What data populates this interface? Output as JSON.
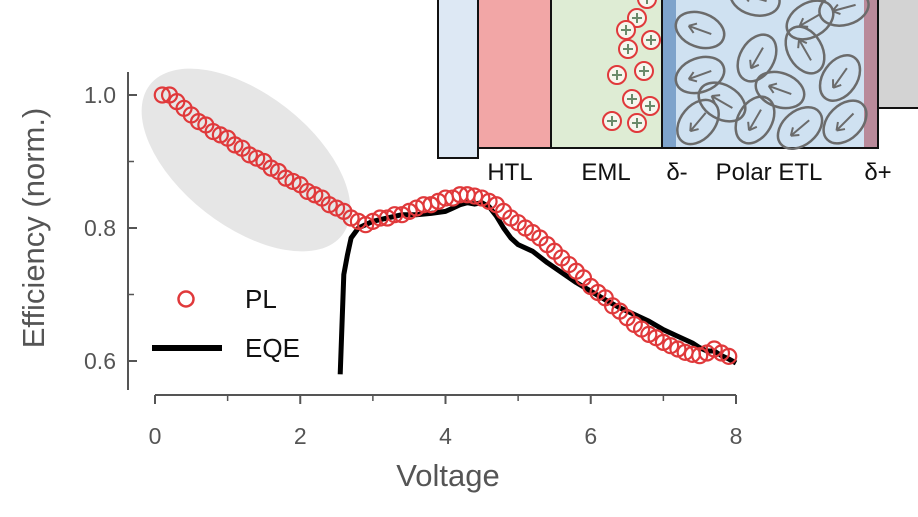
{
  "chart_data": {
    "type": "scatter",
    "title": "",
    "xlabel": "Voltage",
    "ylabel": "Efficiency (norm.)",
    "xlim": [
      0,
      8
    ],
    "ylim": [
      0.58,
      1.02
    ],
    "xticks": [
      "0",
      "2",
      "4",
      "6",
      "8"
    ],
    "yticks": [
      "0.6",
      "0.8",
      "1.0"
    ],
    "grid": false,
    "legend_position": "left",
    "highlight": {
      "type": "ellipse",
      "x_range": [
        -0.3,
        2.8
      ],
      "y_range": [
        0.8,
        1.05
      ],
      "color": "#e6e6e6"
    },
    "series": [
      {
        "name": "PL",
        "style": "open-circle",
        "color": "#e0393b",
        "x": [
          0.1,
          0.2,
          0.3,
          0.4,
          0.5,
          0.6,
          0.7,
          0.8,
          0.9,
          1.0,
          1.1,
          1.2,
          1.3,
          1.4,
          1.5,
          1.6,
          1.7,
          1.8,
          1.9,
          2.0,
          2.1,
          2.2,
          2.3,
          2.4,
          2.5,
          2.6,
          2.7,
          2.8,
          2.9,
          3.0,
          3.1,
          3.2,
          3.3,
          3.4,
          3.5,
          3.6,
          3.7,
          3.8,
          3.9,
          4.0,
          4.1,
          4.2,
          4.3,
          4.4,
          4.5,
          4.6,
          4.7,
          4.8,
          4.9,
          5.0,
          5.1,
          5.2,
          5.3,
          5.4,
          5.5,
          5.6,
          5.7,
          5.8,
          5.9,
          6.0,
          6.1,
          6.2,
          6.3,
          6.4,
          6.5,
          6.6,
          6.7,
          6.8,
          6.9,
          7.0,
          7.1,
          7.2,
          7.3,
          7.4,
          7.5,
          7.6,
          7.7,
          7.8,
          7.9
        ],
        "y": [
          1.0,
          1.0,
          0.99,
          0.98,
          0.97,
          0.96,
          0.955,
          0.945,
          0.94,
          0.935,
          0.925,
          0.92,
          0.91,
          0.905,
          0.9,
          0.89,
          0.885,
          0.875,
          0.87,
          0.865,
          0.855,
          0.85,
          0.845,
          0.835,
          0.83,
          0.825,
          0.815,
          0.81,
          0.805,
          0.81,
          0.815,
          0.815,
          0.82,
          0.82,
          0.825,
          0.83,
          0.835,
          0.835,
          0.84,
          0.845,
          0.845,
          0.85,
          0.85,
          0.848,
          0.845,
          0.84,
          0.835,
          0.825,
          0.815,
          0.808,
          0.8,
          0.793,
          0.785,
          0.775,
          0.765,
          0.755,
          0.745,
          0.735,
          0.725,
          0.712,
          0.703,
          0.695,
          0.683,
          0.675,
          0.665,
          0.655,
          0.648,
          0.64,
          0.635,
          0.628,
          0.623,
          0.618,
          0.613,
          0.61,
          0.608,
          0.612,
          0.618,
          0.612,
          0.607
        ]
      },
      {
        "name": "EQE",
        "style": "line",
        "color": "#000000",
        "x": [
          2.55,
          2.6,
          2.65,
          2.7,
          2.8,
          2.9,
          3.0,
          3.2,
          3.4,
          3.6,
          3.8,
          4.0,
          4.1,
          4.2,
          4.3,
          4.4,
          4.5,
          4.6,
          4.7,
          4.8,
          4.9,
          5.0,
          5.2,
          5.4,
          5.6,
          5.8,
          6.0,
          6.2,
          6.4,
          6.6,
          6.8,
          7.0,
          7.2,
          7.4,
          7.5,
          7.6,
          7.7,
          7.8,
          7.9,
          8.0
        ],
        "y": [
          0.58,
          0.73,
          0.76,
          0.785,
          0.8,
          0.805,
          0.81,
          0.815,
          0.82,
          0.82,
          0.822,
          0.825,
          0.83,
          0.835,
          0.838,
          0.836,
          0.838,
          0.832,
          0.818,
          0.8,
          0.785,
          0.775,
          0.765,
          0.748,
          0.733,
          0.718,
          0.705,
          0.692,
          0.68,
          0.67,
          0.66,
          0.647,
          0.637,
          0.627,
          0.62,
          0.615,
          0.615,
          0.608,
          0.603,
          0.597
        ]
      }
    ]
  },
  "inset": {
    "layers": [
      "HTL",
      "EML",
      "δ-",
      "Polar ETL",
      "δ+"
    ]
  }
}
